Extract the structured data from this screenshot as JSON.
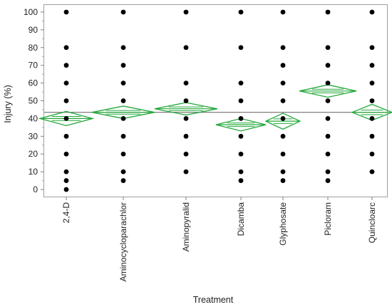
{
  "chart_data": {
    "type": "scatter",
    "subtype": "one-way ANOVA means diamonds with individual points",
    "xlabel": "Treatment",
    "ylabel": "Injury (%)",
    "ylim": [
      -4,
      104
    ],
    "yticks": [
      0,
      10,
      20,
      30,
      40,
      50,
      60,
      70,
      80,
      90,
      100
    ],
    "categories": [
      "2,4-D",
      "Aminocyclopyrachlor",
      "Aminopyralid",
      "Dicamba",
      "Glyphosate",
      "Picloram",
      "Quinclorac"
    ],
    "category_labels": [
      "2,4-D",
      "Aminocycloparachlor",
      "Aminopyralid",
      "Dicamba",
      "Glyphosate",
      "Picloram",
      "Quincloarc"
    ],
    "grand_mean": 43.5,
    "points": [
      [
        100,
        80,
        70,
        60,
        50,
        40,
        30,
        20,
        10,
        5,
        0
      ],
      [
        100,
        80,
        70,
        60,
        50,
        40,
        30,
        20,
        10,
        5
      ],
      [
        100,
        80,
        60,
        50,
        40,
        30,
        20,
        10
      ],
      [
        100,
        80,
        60,
        50,
        40,
        30,
        20,
        10,
        5
      ],
      [
        100,
        80,
        70,
        60,
        50,
        40,
        30,
        20,
        10,
        5
      ],
      [
        100,
        80,
        70,
        60,
        50,
        40,
        30,
        20,
        10,
        5
      ],
      [
        100,
        80,
        70,
        60,
        50,
        40,
        30,
        20,
        10
      ]
    ],
    "means": [
      40,
      43.5,
      45.5,
      36.5,
      38.5,
      55.5,
      43.5
    ],
    "ci_lower": [
      36,
      40,
      42,
      33,
      34,
      52,
      39
    ],
    "ci_upper": [
      44,
      47,
      49,
      40,
      43,
      59,
      48
    ],
    "diamond_color": "#22a83a",
    "point_color": "#000000",
    "grand_mean_color": "#707070",
    "grid": false
  }
}
